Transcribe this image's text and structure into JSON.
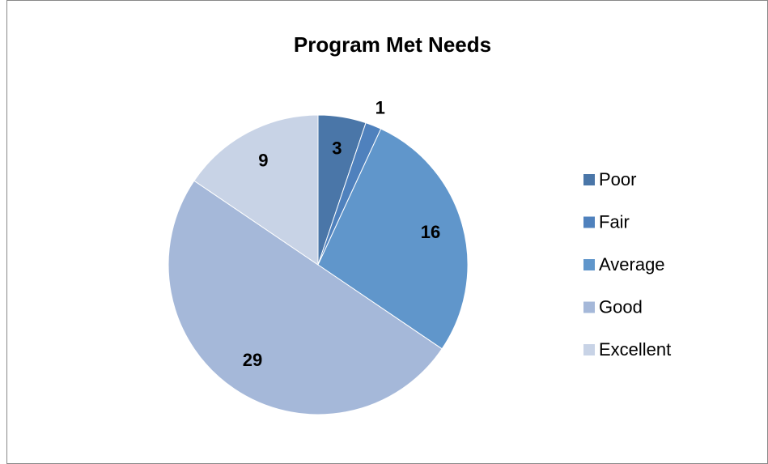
{
  "chart_data": {
    "type": "pie",
    "title": "Program Met Needs",
    "categories": [
      "Poor",
      "Fair",
      "Average",
      "Good",
      "Excellent"
    ],
    "values": [
      3,
      1,
      16,
      29,
      9
    ],
    "colors": [
      "#4a76a8",
      "#4f81bd",
      "#6096cb",
      "#a5b8d9",
      "#c8d3e6"
    ],
    "legend": "right"
  }
}
